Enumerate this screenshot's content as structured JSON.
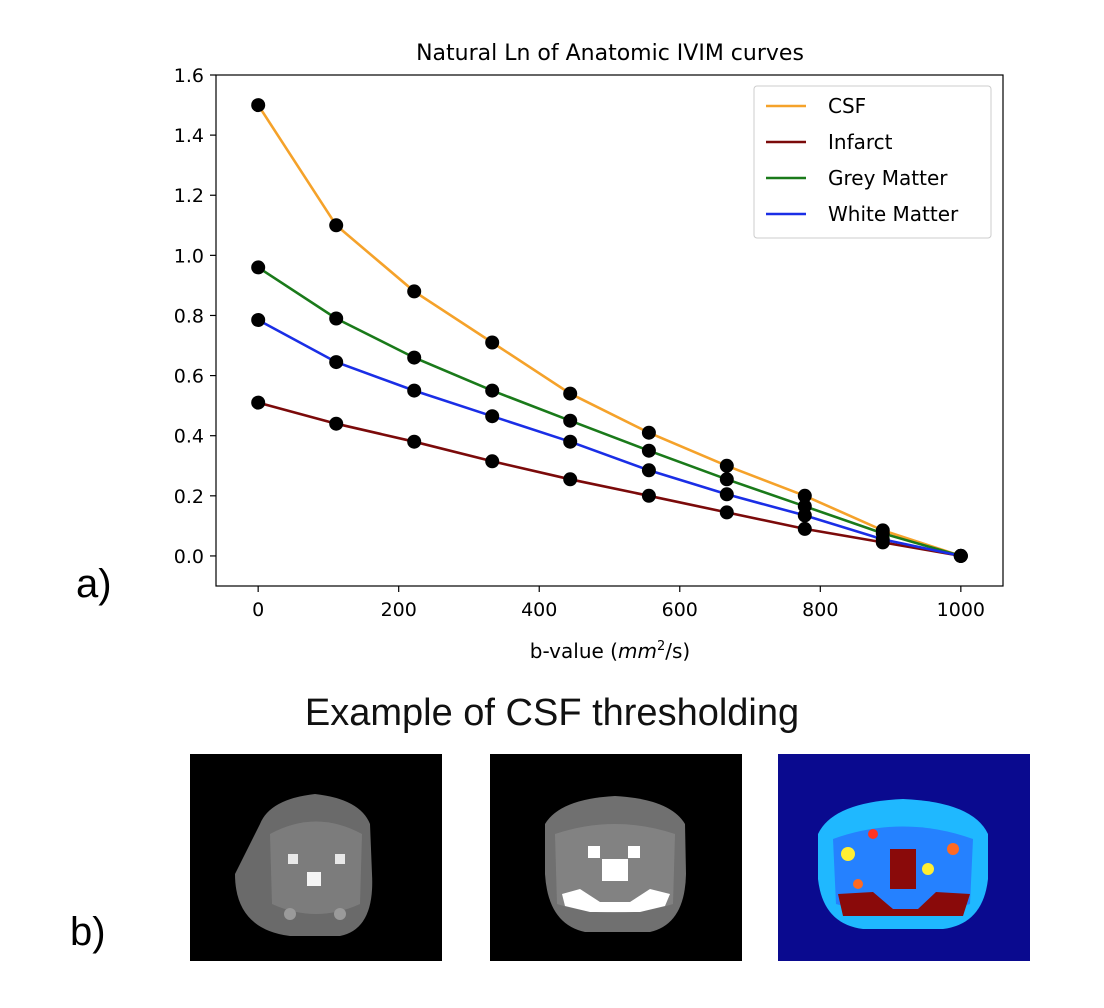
{
  "panel_a_label": "a)",
  "panel_b_label": "b)",
  "section_title": "Example of CSF thresholding",
  "chart_data": {
    "type": "line",
    "title": "Natural Ln of Anatomic IVIM curves",
    "xlabel_prefix": "b-value (",
    "xlabel_unit_base": "mm",
    "xlabel_unit_exp": "2",
    "xlabel_suffix": "/s)",
    "ylabel": "",
    "xlim": [
      -60,
      1060
    ],
    "ylim": [
      -0.1,
      1.6
    ],
    "xticks": [
      0,
      200,
      400,
      600,
      800,
      1000
    ],
    "yticks": [
      0.0,
      0.2,
      0.4,
      0.6,
      0.8,
      1.0,
      1.2,
      1.4,
      1.6
    ],
    "ytick_labels": [
      "0.0",
      "0.2",
      "0.4",
      "0.6",
      "0.8",
      "1.0",
      "1.2",
      "1.4",
      "1.6"
    ],
    "grid": false,
    "legend_position": "top-right",
    "x": [
      0,
      111,
      222,
      333,
      444,
      556,
      667,
      778,
      889,
      1000
    ],
    "series": [
      {
        "name": "CSF",
        "color": "#f5a22a",
        "values": [
          1.5,
          1.1,
          0.88,
          0.71,
          0.54,
          0.41,
          0.3,
          0.2,
          0.085,
          0.0
        ]
      },
      {
        "name": "Infarct",
        "color": "#7b0a0a",
        "values": [
          0.51,
          0.44,
          0.38,
          0.315,
          0.255,
          0.2,
          0.145,
          0.09,
          0.045,
          0.0
        ]
      },
      {
        "name": "Grey Matter",
        "color": "#1a7a1a",
        "values": [
          0.96,
          0.79,
          0.66,
          0.55,
          0.45,
          0.35,
          0.255,
          0.165,
          0.075,
          0.0
        ]
      },
      {
        "name": "White Matter",
        "color": "#1a2ee6",
        "values": [
          0.785,
          0.645,
          0.55,
          0.465,
          0.38,
          0.285,
          0.205,
          0.135,
          0.055,
          0.0
        ]
      }
    ],
    "marker_color": "#000000"
  }
}
